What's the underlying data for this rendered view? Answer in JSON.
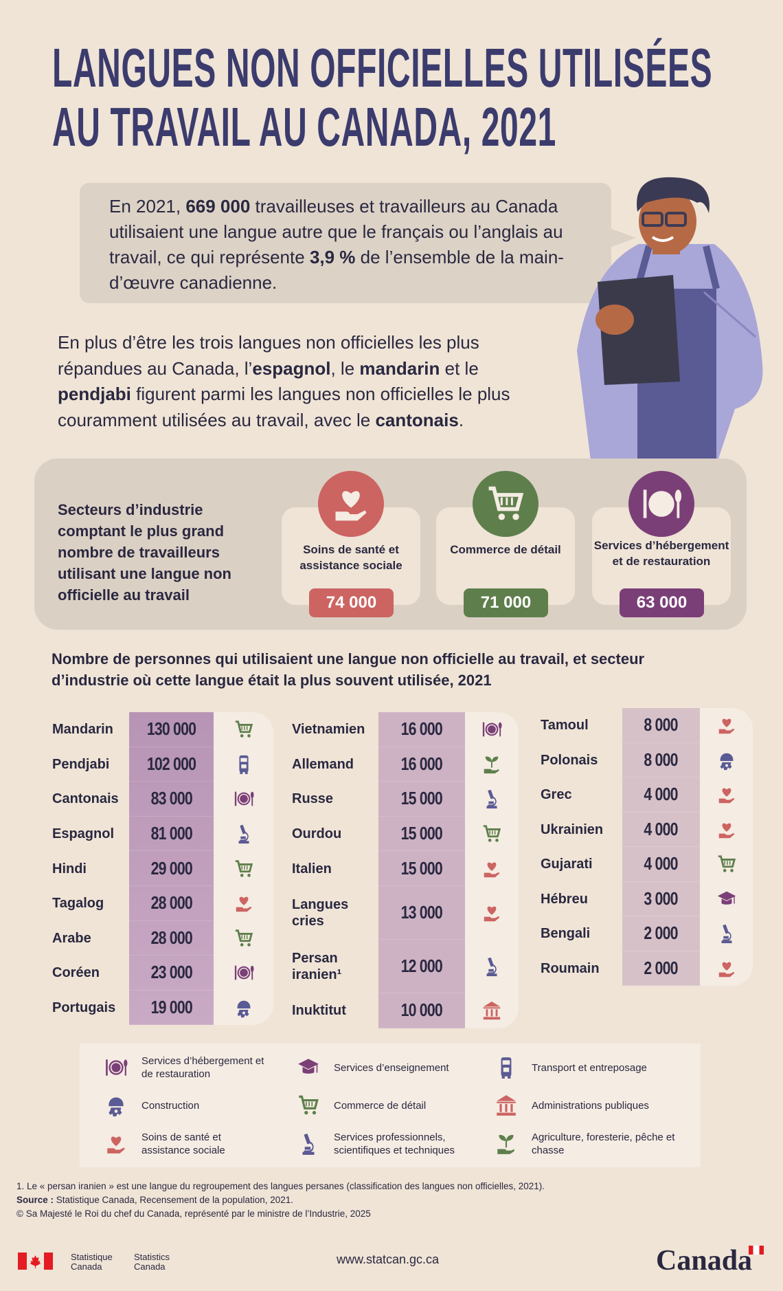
{
  "title": {
    "line1": "LANGUES NON OFFICIELLES UTILISÉES",
    "line2": "AU TRAVAIL AU CANADA, 2021"
  },
  "intro": {
    "p1": "En 2021, ",
    "b1": "669 000",
    "p2": " travailleuses et travailleurs au Canada utilisaient une langue autre que le français ou l’anglais au travail, ce qui représente ",
    "b2": "3,9 %",
    "p3": " de l’ensemble de la main-d’œuvre canadienne."
  },
  "para": {
    "p1": "En plus d’être les trois langues non officielles les plus répandues au Canada, l’",
    "b1": "espagnol",
    "p2": ", le ",
    "b2": "mandarin",
    "p3": " et le ",
    "b3": "pendjabi",
    "p4": " figurent parmi les langues non officielles le plus couramment utilisées au travail, avec le ",
    "b4": "cantonais",
    "p5": "."
  },
  "sectors": {
    "heading": "Secteurs d’industrie comptant le plus grand nombre de travailleurs utilisant une langue non officielle au travail",
    "items": [
      {
        "label": "Soins de santé et assistance sociale",
        "value": "74 000",
        "color": "#cc6462",
        "icon": "heart-hand-icon"
      },
      {
        "label": "Commerce de détail",
        "value": "71 000",
        "color": "#5e7f4c",
        "icon": "cart-icon"
      },
      {
        "label": "Services d’hébergement et de restauration",
        "value": "63 000",
        "color": "#7b3f78",
        "icon": "plate-icon"
      }
    ]
  },
  "table": {
    "heading": "Nombre de personnes qui utilisaient une langue non officielle au travail, et secteur d’industrie où cette langue était la plus souvent utilisée, 2021",
    "columns": [
      [
        {
          "name": "Mandarin",
          "value": "130 000",
          "icon": "cart"
        },
        {
          "name": "Pendjabi",
          "value": "102 000",
          "icon": "truck"
        },
        {
          "name": "Cantonais",
          "value": "83 000",
          "icon": "plate"
        },
        {
          "name": "Espagnol",
          "value": "81 000",
          "icon": "micro"
        },
        {
          "name": "Hindi",
          "value": "29 000",
          "icon": "cart"
        },
        {
          "name": "Tagalog",
          "value": "28 000",
          "icon": "heart"
        },
        {
          "name": "Arabe",
          "value": "28 000",
          "icon": "cart"
        },
        {
          "name": "Coréen",
          "value": "23 000",
          "icon": "plate"
        },
        {
          "name": "Portugais",
          "value": "19 000",
          "icon": "helmet"
        }
      ],
      [
        {
          "name": "Vietnamien",
          "value": "16 000",
          "icon": "plate"
        },
        {
          "name": "Allemand",
          "value": "16 000",
          "icon": "plant"
        },
        {
          "name": "Russe",
          "value": "15 000",
          "icon": "micro"
        },
        {
          "name": "Ourdou",
          "value": "15 000",
          "icon": "cart"
        },
        {
          "name": "Italien",
          "value": "15 000",
          "icon": "heart"
        },
        {
          "name": "Langues cries",
          "value": "13 000",
          "icon": "heart"
        },
        {
          "name": "Persan iranien¹",
          "value": "12 000",
          "icon": "micro"
        },
        {
          "name": "Inuktitut",
          "value": "10 000",
          "icon": "gov"
        }
      ],
      [
        {
          "name": "Tamoul",
          "value": "8 000",
          "icon": "heart"
        },
        {
          "name": "Polonais",
          "value": "8 000",
          "icon": "helmet"
        },
        {
          "name": "Grec",
          "value": "4 000",
          "icon": "heart"
        },
        {
          "name": "Ukrainien",
          "value": "4 000",
          "icon": "heart"
        },
        {
          "name": "Gujarati",
          "value": "4 000",
          "icon": "cart"
        },
        {
          "name": "Hébreu",
          "value": "3 000",
          "icon": "cap"
        },
        {
          "name": "Bengali",
          "value": "2 000",
          "icon": "micro"
        },
        {
          "name": "Roumain",
          "value": "2 000",
          "icon": "heart"
        }
      ]
    ]
  },
  "legend": [
    {
      "icon": "plate",
      "label": "Services d’hébergement et de restauration"
    },
    {
      "icon": "cap",
      "label": "Services d’enseignement"
    },
    {
      "icon": "truck",
      "label": "Transport et entreposage"
    },
    {
      "icon": "helmet",
      "label": "Construction"
    },
    {
      "icon": "cart",
      "label": "Commerce de détail"
    },
    {
      "icon": "gov",
      "label": "Administrations publiques"
    },
    {
      "icon": "heart",
      "label": "Soins de santé et assistance sociale"
    },
    {
      "icon": "micro",
      "label": "Services professionnels, scientifiques et techniques"
    },
    {
      "icon": "plant",
      "label": "Agriculture, foresterie, pêche et chasse"
    }
  ],
  "icon_colors": {
    "cart": "#5e7f4c",
    "plant": "#5e7f4c",
    "truck": "#5a5a94",
    "helmet": "#5a5a94",
    "micro": "#5a5a94",
    "plate": "#7b3f78",
    "cap": "#7b3f78",
    "heart": "#cc6462",
    "gov": "#cc6462"
  },
  "footnotes": {
    "note": "1.  Le « persan iranien » est une langue du regroupement des langues persanes (classification des langues non officielles, 2021).",
    "source_label": "Source :",
    "source": " Statistique Canada, Recensement de la population, 2021.",
    "copyright": "© Sa Majesté le Roi du chef du Canada, représenté par le ministre de l’Industrie, 2025"
  },
  "footer": {
    "stat_fr1": "Statistique",
    "stat_fr2": "Canada",
    "stat_en1": "Statistics",
    "stat_en2": "Canada",
    "url": "www.statcan.gc.ca",
    "wordmark": "Canada"
  }
}
